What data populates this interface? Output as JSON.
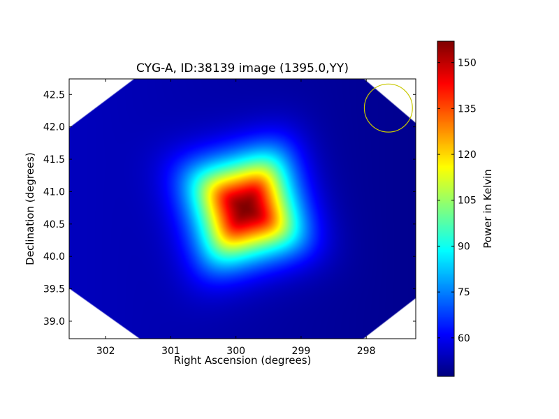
{
  "chart_data": {
    "type": "heatmap",
    "title": "CYG-A, ID:38139 image (1395.0,YY)",
    "xlabel": "Right Ascension (degrees)",
    "ylabel": "Declination (degrees)",
    "xlim": [
      302.56,
      297.24
    ],
    "ylim": [
      38.73,
      42.74
    ],
    "xticks": [
      302,
      301,
      300,
      299,
      298
    ],
    "xtick_labels": [
      "302",
      "301",
      "300",
      "299",
      "298"
    ],
    "yticks": [
      39.0,
      39.5,
      40.0,
      40.5,
      41.0,
      41.5,
      42.0,
      42.5
    ],
    "ytick_labels": [
      "39.0",
      "39.5",
      "40.0",
      "40.5",
      "41.0",
      "41.5",
      "42.0",
      "42.5"
    ],
    "colormap": "jet",
    "colorbar": {
      "label": "Power in Kelvin",
      "range": [
        47.4,
        157
      ],
      "ticks": [
        60,
        75,
        90,
        105,
        120,
        135,
        150
      ],
      "tick_labels": [
        "60",
        "75",
        "90",
        "105",
        "120",
        "135",
        "150"
      ]
    },
    "source": {
      "ra": 299.86,
      "dec": 40.75,
      "peak_value": 157,
      "background_east": 54,
      "background_west": 49
    },
    "marker_circle": {
      "ra": 297.66,
      "dec": 42.29,
      "radius_deg": 0.37,
      "color": "#c8c800"
    },
    "grid": false
  }
}
